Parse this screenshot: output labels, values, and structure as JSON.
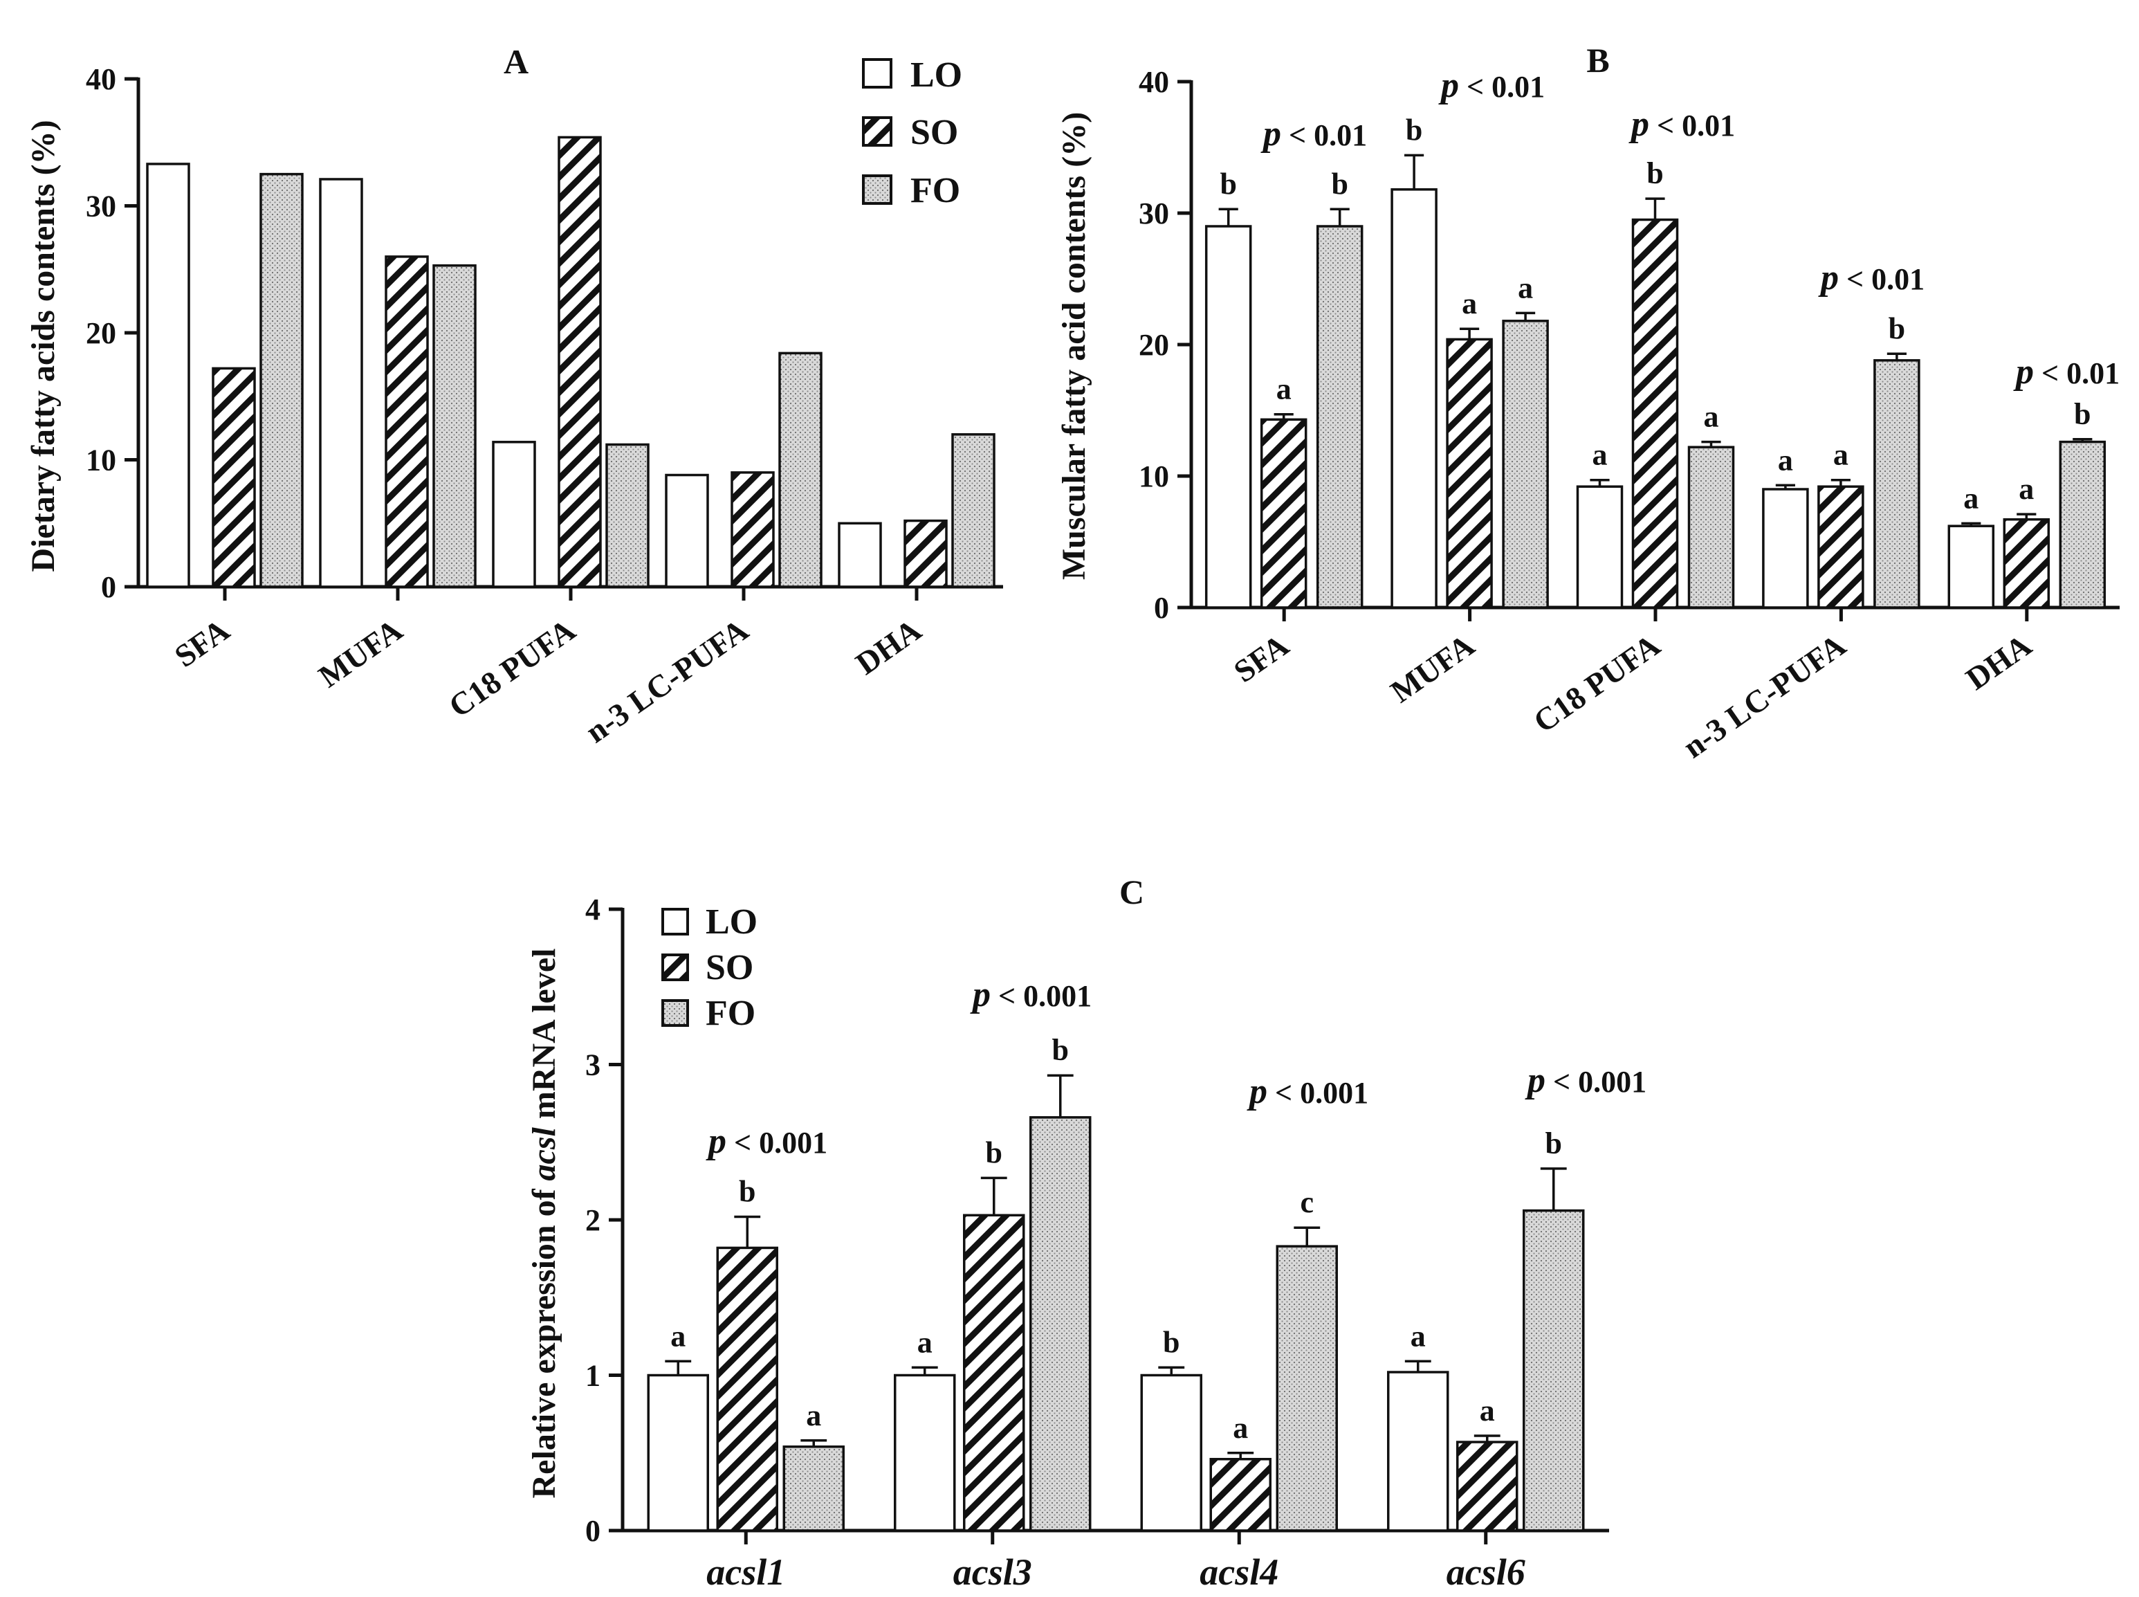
{
  "chart_data": [
    {
      "id": "A",
      "type": "bar",
      "title": "A",
      "ylabel": "Dietary fatty acids contents  (%)",
      "ylim": [
        0,
        40
      ],
      "yticks": [
        0,
        10,
        20,
        30,
        40
      ],
      "categories": [
        "SFA",
        "MUFA",
        "C18 PUFA",
        "n-3 LC-PUFA",
        "DHA"
      ],
      "series": [
        {
          "name": "LO",
          "values": [
            33.3,
            32.1,
            11.4,
            8.8,
            5.0
          ]
        },
        {
          "name": "SO",
          "values": [
            17.2,
            26.0,
            35.4,
            9.0,
            5.2
          ]
        },
        {
          "name": "FO",
          "values": [
            32.5,
            25.3,
            11.2,
            18.4,
            12.0
          ]
        }
      ],
      "legend": [
        "LO",
        "SO",
        "FO"
      ],
      "legend_position": "top-right"
    },
    {
      "id": "B",
      "type": "bar",
      "title": "B",
      "ylabel": "Muscular fatty acid contents (%)",
      "ylim": [
        0,
        40
      ],
      "yticks": [
        0,
        10,
        20,
        30,
        40
      ],
      "categories": [
        "SFA",
        "MUFA",
        "C18 PUFA",
        "n-3 LC-PUFA",
        "DHA"
      ],
      "series": [
        {
          "name": "LO",
          "values": [
            29.0,
            31.8,
            9.2,
            9.0,
            6.2
          ],
          "errors": [
            1.3,
            2.6,
            0.5,
            0.3,
            0.2
          ],
          "letters": [
            "b",
            "b",
            "a",
            "a",
            "a"
          ]
        },
        {
          "name": "SO",
          "values": [
            14.3,
            20.4,
            29.5,
            9.2,
            6.7
          ],
          "errors": [
            0.4,
            0.8,
            1.6,
            0.5,
            0.4
          ],
          "letters": [
            "a",
            "a",
            "b",
            "a",
            "a"
          ]
        },
        {
          "name": "FO",
          "values": [
            29.0,
            21.8,
            12.2,
            18.8,
            12.6
          ],
          "errors": [
            1.3,
            0.6,
            0.4,
            0.5,
            0.2
          ],
          "letters": [
            "b",
            "a",
            "a",
            "b",
            "b"
          ]
        }
      ],
      "p_labels": [
        {
          "symbol": "p",
          "text": " < 0.01"
        },
        {
          "symbol": "p",
          "text": " < 0.01"
        },
        {
          "symbol": "p",
          "text": " < 0.01"
        },
        {
          "symbol": "p",
          "text": " < 0.01"
        },
        {
          "symbol": "p",
          "text": " < 0.01"
        }
      ]
    },
    {
      "id": "C",
      "type": "bar",
      "title": "C",
      "ylabel_part1": "Relative expression of ",
      "ylabel_italic": "acsl",
      "ylabel_part2": "  mRNA level",
      "ylim": [
        0,
        4
      ],
      "yticks": [
        0,
        1,
        2,
        3,
        4
      ],
      "categories": [
        "acsl1",
        "acsl3",
        "acsl4",
        "acsl6"
      ],
      "series": [
        {
          "name": "LO",
          "values": [
            1.0,
            1.0,
            1.0,
            1.02
          ],
          "errors": [
            0.09,
            0.05,
            0.05,
            0.07
          ],
          "letters": [
            "a",
            "a",
            "b",
            "a"
          ]
        },
        {
          "name": "SO",
          "values": [
            1.82,
            2.03,
            0.46,
            0.57
          ],
          "errors": [
            0.2,
            0.24,
            0.04,
            0.04
          ],
          "letters": [
            "b",
            "b",
            "a",
            "a"
          ]
        },
        {
          "name": "FO",
          "values": [
            0.54,
            2.66,
            1.83,
            2.06
          ],
          "errors": [
            0.04,
            0.27,
            0.12,
            0.27
          ],
          "letters": [
            "a",
            "b",
            "c",
            "b"
          ]
        }
      ],
      "p_labels": [
        {
          "symbol": "p",
          "text": " < 0.001"
        },
        {
          "symbol": "p",
          "text": " < 0.001"
        },
        {
          "symbol": "p",
          "text": " < 0.001"
        },
        {
          "symbol": "p",
          "text": " < 0.001"
        }
      ],
      "legend": [
        "LO",
        "SO",
        "FO"
      ],
      "legend_position": "top-left"
    }
  ]
}
